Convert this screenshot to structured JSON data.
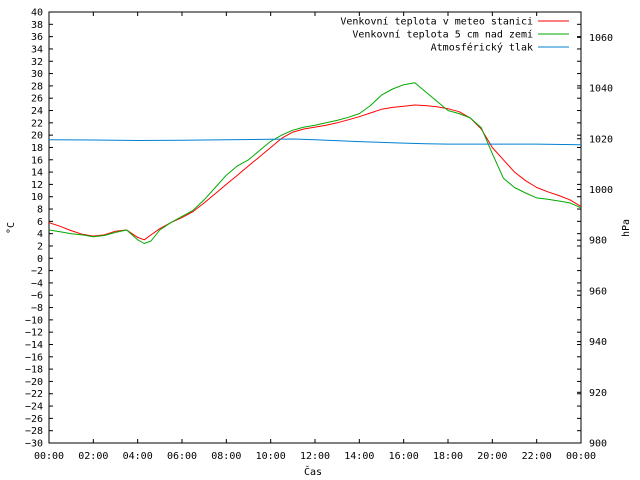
{
  "chart_data": {
    "type": "line",
    "xlabel": "Čas",
    "ylabel": "°C",
    "y2label": "hPa",
    "x_ticks": [
      "00:00",
      "02:00",
      "04:00",
      "06:00",
      "08:00",
      "10:00",
      "12:00",
      "14:00",
      "16:00",
      "18:00",
      "20:00",
      "22:00",
      "00:00"
    ],
    "x_range_hours": [
      0,
      24
    ],
    "ylim": [
      -30,
      40
    ],
    "y_tick_step": 2,
    "y2lim": [
      900,
      1070
    ],
    "y2_ticks": [
      900,
      920,
      940,
      960,
      980,
      1000,
      1020,
      1040,
      1060
    ],
    "grid": false,
    "legend_position": "top-right",
    "series": [
      {
        "name": "Venkovní teplota v meteo stanici",
        "axis": "left",
        "color": "#ff0000",
        "x": [
          0,
          0.5,
          1,
          1.5,
          2,
          2.5,
          3,
          3.5,
          4,
          4.3,
          4.6,
          5,
          5.5,
          6,
          6.5,
          7,
          7.5,
          8,
          8.5,
          9,
          9.5,
          10,
          10.5,
          11,
          11.5,
          12,
          12.5,
          13,
          13.5,
          14,
          14.5,
          15,
          15.5,
          16,
          16.5,
          17,
          17.5,
          18,
          18.5,
          19,
          19.5,
          20,
          20.5,
          21,
          21.5,
          22,
          22.5,
          23,
          23.5,
          24
        ],
        "y": [
          5.8,
          5.2,
          4.5,
          3.9,
          3.6,
          3.8,
          4.4,
          4.6,
          3.4,
          3.0,
          3.8,
          4.8,
          5.8,
          6.6,
          7.6,
          9.0,
          10.5,
          12.0,
          13.5,
          15.0,
          16.5,
          18.0,
          19.5,
          20.5,
          21.0,
          21.3,
          21.6,
          22.0,
          22.5,
          23.0,
          23.6,
          24.2,
          24.5,
          24.7,
          24.9,
          24.8,
          24.6,
          24.3,
          23.8,
          22.8,
          21.0,
          18.0,
          16.0,
          14.0,
          12.6,
          11.5,
          10.8,
          10.2,
          9.5,
          8.4
        ]
      },
      {
        "name": "Venkovní teplota 5 cm nad zemí",
        "axis": "left",
        "color": "#00aa00",
        "x": [
          0,
          0.5,
          1,
          1.5,
          2,
          2.5,
          3,
          3.5,
          4,
          4.3,
          4.6,
          5,
          5.5,
          6,
          6.5,
          7,
          7.5,
          8,
          8.5,
          9,
          9.5,
          10,
          10.5,
          11,
          11.5,
          12,
          12.5,
          13,
          13.5,
          14,
          14.5,
          15,
          15.5,
          16,
          16.5,
          17,
          17.5,
          18,
          18.5,
          19,
          19.5,
          20,
          20.5,
          21,
          21.5,
          22,
          22.5,
          23,
          23.5,
          24
        ],
        "y": [
          4.6,
          4.3,
          4.0,
          3.8,
          3.5,
          3.7,
          4.2,
          4.6,
          3.0,
          2.4,
          2.8,
          4.6,
          5.8,
          6.8,
          7.8,
          9.5,
          11.5,
          13.5,
          15.0,
          16.0,
          17.5,
          19.0,
          20.0,
          20.8,
          21.3,
          21.6,
          22.0,
          22.4,
          22.9,
          23.5,
          24.8,
          26.5,
          27.5,
          28.2,
          28.5,
          27.0,
          25.5,
          24.0,
          23.5,
          22.8,
          21.2,
          17.0,
          13.0,
          11.5,
          10.6,
          9.8,
          9.6,
          9.3,
          9.0,
          8.2
        ]
      },
      {
        "name": "Atmosférický tlak",
        "axis": "right",
        "color": "#0080d0",
        "x": [
          0,
          2,
          4,
          6,
          8,
          10,
          11,
          12,
          14,
          16,
          17,
          18,
          20,
          22,
          24
        ],
        "y": [
          1019.6,
          1019.5,
          1019.3,
          1019.4,
          1019.6,
          1019.8,
          1019.9,
          1019.6,
          1018.9,
          1018.3,
          1018.0,
          1017.9,
          1017.9,
          1017.9,
          1017.6
        ]
      }
    ]
  }
}
